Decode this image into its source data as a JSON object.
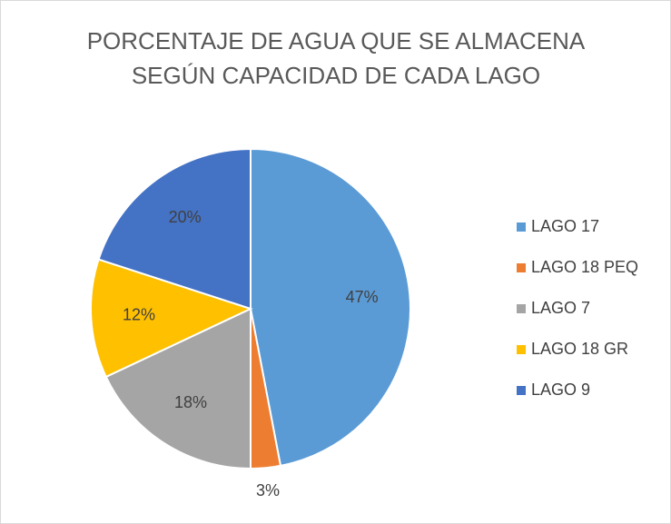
{
  "chart_data": {
    "type": "pie",
    "title": [
      "PORCENTAJE DE AGUA QUE SE ALMACENA",
      "SEGÚN CAPACIDAD DE CADA LAGO"
    ],
    "categories": [
      "LAGO 17",
      "LAGO 18 PEQ",
      "LAGO 7",
      "LAGO 18 GR",
      "LAGO 9"
    ],
    "values": [
      47,
      3,
      18,
      12,
      20
    ],
    "value_labels": [
      "47%",
      "3%",
      "18%",
      "12%",
      "20%"
    ],
    "colors": [
      "#5b9bd5",
      "#ed7d31",
      "#a5a5a5",
      "#ffc000",
      "#4472c4"
    ],
    "legend": "right"
  }
}
